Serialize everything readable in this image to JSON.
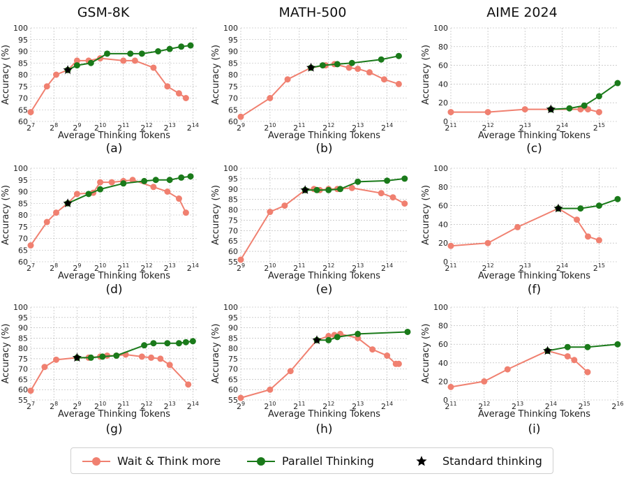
{
  "colors": {
    "wait": "#f08070",
    "parallel": "#1a7a1a",
    "standard": "#000000",
    "grid": "#b0b0b0"
  },
  "column_titles": [
    "GSM-8K",
    "MATH-500",
    "AIME 2024"
  ],
  "legend": {
    "wait": "Wait & Think more",
    "parallel": "Parallel Thinking",
    "standard": "Standard thinking"
  },
  "chart_data": [
    {
      "type": "line",
      "caption": "(a)",
      "xlabel": "Average Thinking Tokens",
      "ylabel": "Accuracy (%)",
      "xscale": "log2",
      "xlim": [
        7,
        14.2
      ],
      "ylim": [
        60,
        100
      ],
      "yticks": [
        60,
        65,
        70,
        75,
        80,
        85,
        90,
        95,
        100
      ],
      "xticks": [
        7,
        8,
        9,
        10,
        11,
        12,
        13,
        14
      ],
      "grid": true,
      "series": [
        {
          "name": "Wait & Think more",
          "x_log2": [
            7.0,
            7.7,
            8.1,
            8.6,
            9.0,
            9.5,
            10.0,
            11.0,
            11.5,
            12.3,
            12.9,
            13.4,
            13.7
          ],
          "y": [
            64,
            75,
            80,
            82,
            86,
            86,
            87,
            86,
            86,
            83,
            75,
            72,
            70
          ]
        },
        {
          "name": "Parallel Thinking",
          "x_log2": [
            8.6,
            9.0,
            9.6,
            10.3,
            11.3,
            11.8,
            12.5,
            13.0,
            13.5,
            13.9
          ],
          "y": [
            82,
            84,
            85,
            89,
            89,
            89,
            90,
            91,
            92,
            92.5
          ]
        }
      ],
      "standard": {
        "x_log2": 8.6,
        "y": 82
      }
    },
    {
      "type": "line",
      "caption": "(b)",
      "xlabel": "Average Thinking Tokens",
      "ylabel": "Accuracy (%)",
      "xscale": "log2",
      "xlim": [
        9,
        14.7
      ],
      "ylim": [
        60,
        100
      ],
      "yticks": [
        60,
        65,
        70,
        75,
        80,
        85,
        90,
        95,
        100
      ],
      "xticks": [
        9,
        10,
        11,
        12,
        13,
        14
      ],
      "grid": true,
      "series": [
        {
          "name": "Wait & Think more",
          "x_log2": [
            9.0,
            10.0,
            10.6,
            11.4,
            11.9,
            12.2,
            12.7,
            13.0,
            13.4,
            13.9,
            14.4
          ],
          "y": [
            62,
            70,
            78,
            83,
            84,
            84.5,
            83,
            82.5,
            81,
            78,
            76
          ]
        },
        {
          "name": "Parallel Thinking",
          "x_log2": [
            11.4,
            11.8,
            12.3,
            12.8,
            13.8,
            14.4
          ],
          "y": [
            83,
            84,
            84.5,
            85,
            86.5,
            88
          ]
        }
      ],
      "standard": {
        "x_log2": 11.4,
        "y": 83
      }
    },
    {
      "type": "line",
      "caption": "(c)",
      "xlabel": "Average Thinking Tokens",
      "ylabel": "Accuracy (%)",
      "xscale": "log2",
      "xlim": [
        11,
        15.5
      ],
      "ylim": [
        0,
        100
      ],
      "yticks": [
        0,
        20,
        40,
        60,
        80,
        100
      ],
      "xticks": [
        11,
        12,
        13,
        14,
        15
      ],
      "grid": true,
      "series": [
        {
          "name": "Wait & Think more",
          "x_log2": [
            11.0,
            12.0,
            13.0,
            13.7,
            14.5,
            14.7,
            15.0
          ],
          "y": [
            10,
            10,
            13,
            13,
            13,
            13,
            10
          ]
        },
        {
          "name": "Parallel Thinking",
          "x_log2": [
            13.7,
            14.2,
            14.6,
            15.0,
            15.5
          ],
          "y": [
            13,
            14,
            17,
            27,
            41
          ]
        }
      ],
      "standard": {
        "x_log2": 13.7,
        "y": 13
      }
    },
    {
      "type": "line",
      "caption": "(d)",
      "xlabel": "Average Thinking Tokens",
      "ylabel": "Accuracy (%)",
      "xscale": "log2",
      "xlim": [
        7,
        14.2
      ],
      "ylim": [
        60,
        100
      ],
      "yticks": [
        60,
        65,
        70,
        75,
        80,
        85,
        90,
        95,
        100
      ],
      "xticks": [
        7,
        8,
        9,
        10,
        11,
        12,
        13,
        14
      ],
      "grid": true,
      "series": [
        {
          "name": "Wait & Think more",
          "x_log2": [
            7.0,
            7.7,
            8.1,
            8.6,
            9.0,
            9.7,
            10.0,
            10.5,
            11.0,
            11.4,
            12.3,
            12.9,
            13.4,
            13.7
          ],
          "y": [
            67,
            77,
            81,
            85,
            89,
            89.5,
            94,
            94,
            94.5,
            95,
            92,
            90,
            87,
            81
          ]
        },
        {
          "name": "Parallel Thinking",
          "x_log2": [
            8.6,
            9.5,
            10.0,
            11.0,
            11.9,
            12.4,
            13.0,
            13.5,
            13.9
          ],
          "y": [
            85,
            89,
            91,
            93.5,
            94.5,
            95,
            95,
            96,
            96.5
          ]
        }
      ],
      "standard": {
        "x_log2": 8.6,
        "y": 85
      }
    },
    {
      "type": "line",
      "caption": "(e)",
      "xlabel": "Average Thinking Tokens",
      "ylabel": "Accuracy (%)",
      "xscale": "log2",
      "xlim": [
        9,
        14.7
      ],
      "ylim": [
        55,
        100
      ],
      "yticks": [
        55,
        60,
        65,
        70,
        75,
        80,
        85,
        90,
        95,
        100
      ],
      "xticks": [
        9,
        10,
        11,
        12,
        13,
        14
      ],
      "grid": true,
      "series": [
        {
          "name": "Wait & Think more",
          "x_log2": [
            9.0,
            10.0,
            10.5,
            11.2,
            11.5,
            11.7,
            12.0,
            12.3,
            12.8,
            13.8,
            14.2,
            14.6
          ],
          "y": [
            56,
            79,
            82,
            89.5,
            90,
            89.5,
            90,
            90,
            90.5,
            88,
            86,
            83
          ]
        },
        {
          "name": "Parallel Thinking",
          "x_log2": [
            11.2,
            11.6,
            12.0,
            12.4,
            13.0,
            14.0,
            14.6
          ],
          "y": [
            89.5,
            89.5,
            89.5,
            90,
            93.5,
            94,
            95
          ]
        }
      ],
      "standard": {
        "x_log2": 11.2,
        "y": 89.5
      }
    },
    {
      "type": "line",
      "caption": "(f)",
      "xlabel": "Average Thinking Tokens",
      "ylabel": "Accuracy (%)",
      "xscale": "log2",
      "xlim": [
        11,
        15.5
      ],
      "ylim": [
        0,
        100
      ],
      "yticks": [
        0,
        20,
        40,
        60,
        80,
        100
      ],
      "xticks": [
        11,
        12,
        13,
        14,
        15
      ],
      "grid": true,
      "series": [
        {
          "name": "Wait & Think more",
          "x_log2": [
            11.0,
            12.0,
            12.8,
            13.9,
            14.4,
            14.7,
            15.0
          ],
          "y": [
            17,
            20,
            37,
            57,
            45,
            27,
            23
          ]
        },
        {
          "name": "Parallel Thinking",
          "x_log2": [
            13.9,
            14.5,
            15.0,
            15.5
          ],
          "y": [
            57,
            57,
            60,
            67
          ]
        }
      ],
      "standard": {
        "x_log2": 13.9,
        "y": 57
      }
    },
    {
      "type": "line",
      "caption": "(g)",
      "xlabel": "Average Thinking Tokens",
      "ylabel": "Accuracy (%)",
      "xscale": "log2",
      "xlim": [
        7,
        14.2
      ],
      "ylim": [
        55,
        100
      ],
      "yticks": [
        55,
        60,
        65,
        70,
        75,
        80,
        85,
        90,
        95,
        100
      ],
      "xticks": [
        7,
        8,
        9,
        10,
        11,
        12,
        13,
        14
      ],
      "grid": true,
      "series": [
        {
          "name": "Wait & Think more",
          "x_log2": [
            7.0,
            7.6,
            8.1,
            9.0,
            9.5,
            10.0,
            10.3,
            10.7,
            11.1,
            11.8,
            12.2,
            12.6,
            13.0,
            13.8
          ],
          "y": [
            59.5,
            71,
            74.5,
            75.5,
            75.5,
            76,
            76.5,
            76.5,
            77,
            76,
            75.5,
            75,
            72,
            62.5
          ]
        },
        {
          "name": "Parallel Thinking",
          "x_log2": [
            9.0,
            9.6,
            10.1,
            10.7,
            11.9,
            12.3,
            12.9,
            13.4,
            13.7,
            14.0
          ],
          "y": [
            75.5,
            75.5,
            76,
            76.5,
            81.5,
            82.5,
            82.5,
            82.5,
            83,
            83.5
          ]
        }
      ],
      "standard": {
        "x_log2": 9.0,
        "y": 75.5
      }
    },
    {
      "type": "line",
      "caption": "(h)",
      "xlabel": "Average Thinking Tokens",
      "ylabel": "Accuracy (%)",
      "xscale": "log2",
      "xlim": [
        9,
        14.7
      ],
      "ylim": [
        55,
        100
      ],
      "yticks": [
        55,
        60,
        65,
        70,
        75,
        80,
        85,
        90,
        95,
        100
      ],
      "xticks": [
        9,
        10,
        11,
        12,
        13,
        14
      ],
      "grid": true,
      "series": [
        {
          "name": "Wait & Think more",
          "x_log2": [
            9.0,
            10.0,
            10.7,
            11.6,
            12.0,
            12.2,
            12.4,
            13.0,
            13.5,
            14.0,
            14.3,
            14.4
          ],
          "y": [
            56,
            60,
            69,
            84,
            86,
            86.5,
            87,
            85,
            79.5,
            76.5,
            72.5,
            72.5
          ]
        },
        {
          "name": "Parallel Thinking",
          "x_log2": [
            11.6,
            12.0,
            12.3,
            13.0,
            14.7
          ],
          "y": [
            84,
            84,
            85.5,
            87,
            88
          ]
        }
      ],
      "standard": {
        "x_log2": 11.6,
        "y": 84
      }
    },
    {
      "type": "line",
      "caption": "(i)",
      "xlabel": "Average Thinking Tokens",
      "ylabel": "Accuracy (%)",
      "xscale": "log2",
      "xlim": [
        11,
        16
      ],
      "ylim": [
        0,
        100
      ],
      "yticks": [
        0,
        20,
        40,
        60,
        80,
        100
      ],
      "xticks": [
        11,
        12,
        13,
        14,
        15,
        16
      ],
      "grid": true,
      "series": [
        {
          "name": "Wait & Think more",
          "x_log2": [
            11.0,
            12.0,
            12.7,
            13.9,
            14.5,
            14.7,
            15.1
          ],
          "y": [
            14,
            20,
            33,
            53,
            47,
            43,
            30
          ]
        },
        {
          "name": "Parallel Thinking",
          "x_log2": [
            13.9,
            14.5,
            15.1,
            16.0
          ],
          "y": [
            53,
            57,
            57,
            60
          ]
        }
      ],
      "standard": {
        "x_log2": 13.9,
        "y": 53
      }
    }
  ]
}
